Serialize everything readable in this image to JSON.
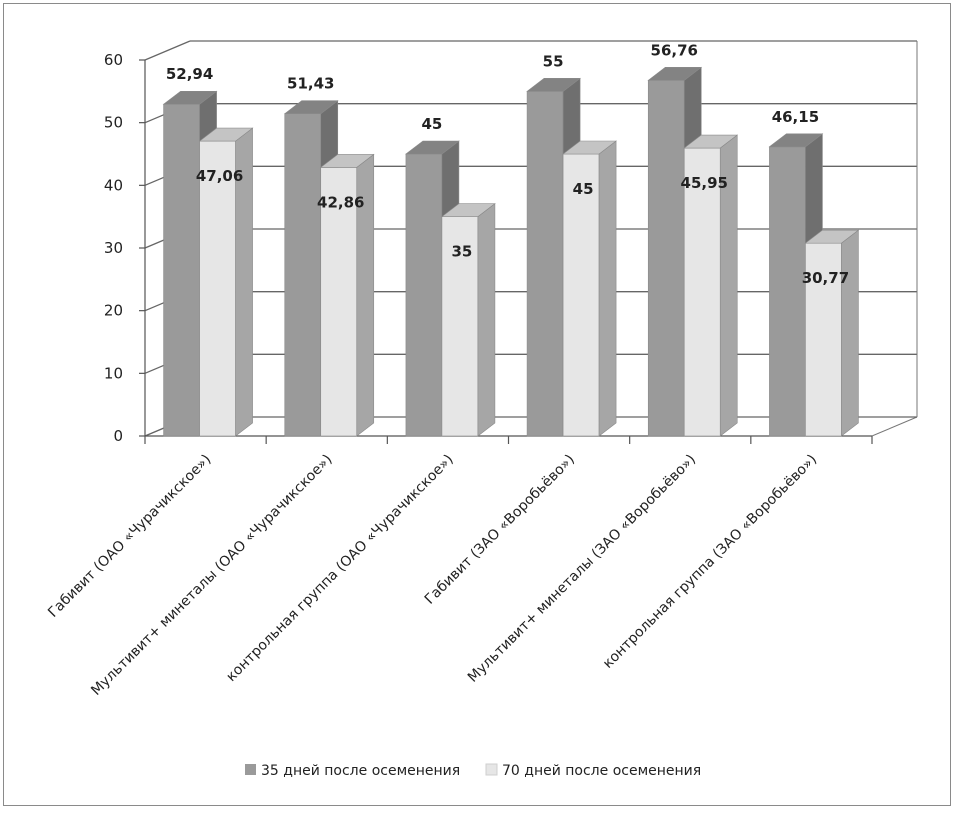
{
  "chart_data": {
    "type": "bar",
    "title": "",
    "xlabel": "",
    "ylabel": "",
    "ylim": [
      0,
      60
    ],
    "yticks": [
      0,
      10,
      20,
      30,
      40,
      50,
      60
    ],
    "grid": true,
    "style": "3d-clustered-column",
    "legend_position": "bottom",
    "categories": [
      "Габивит (ОАО «Чурачикское»)",
      "Мультивит+ минеталы (ОАО «Чурачикское»)",
      "контрольная группа (ОАО «Чурачикское»)",
      "Габивит (ЗАО «Воробьёво»)",
      "Мультивит+ минеталы (ЗАО «Воробьёво»)",
      "контрольная группа (ЗАО «Воробьёво»)"
    ],
    "series": [
      {
        "name": "35 дней после осеменения",
        "values": [
          52.94,
          51.43,
          45,
          55,
          56.76,
          46.15
        ],
        "labels": [
          "52,94",
          "51,43",
          "45",
          "55",
          "56,76",
          "46,15"
        ],
        "color": "#9a9a9a"
      },
      {
        "name": "70 дней после осеменения",
        "values": [
          47.06,
          42.86,
          35,
          45,
          45.95,
          30.77
        ],
        "labels": [
          "47,06",
          "42,86",
          "35",
          "45",
          "45,95",
          "30,77"
        ],
        "color": "#e6e6e6"
      }
    ]
  }
}
